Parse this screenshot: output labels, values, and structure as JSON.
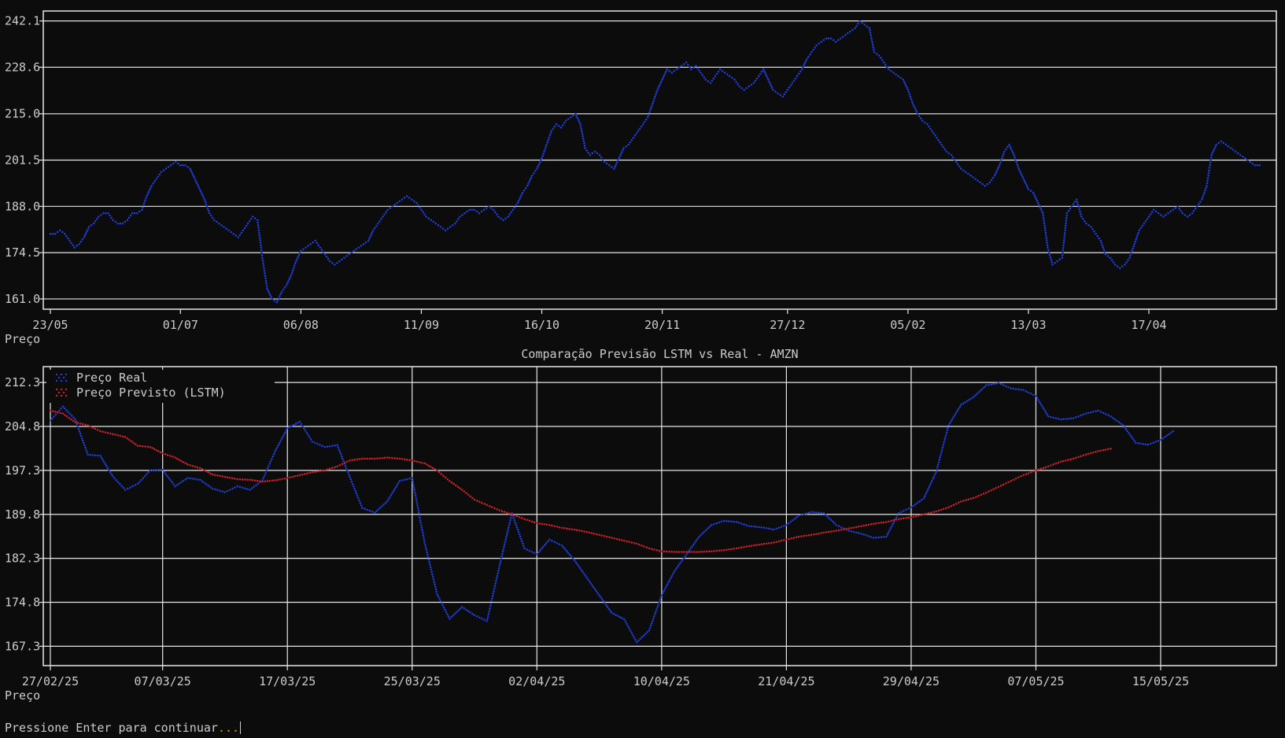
{
  "colors": {
    "background": "#0c0c0c",
    "text": "#cccccc",
    "grid": "#e6e6e6",
    "real": "#1f3fd8",
    "predicted": "#d0202a",
    "prompt_dots": "#c19c00"
  },
  "prompt": {
    "text": "Pressione Enter para continuar",
    "dots": "..."
  },
  "chart_data": [
    {
      "type": "line",
      "title": "",
      "xlabel": "",
      "ylabel": "Preço",
      "grid": "horizontal",
      "ylim": [
        158.0,
        245.0
      ],
      "yticks": [
        161.0,
        174.5,
        188.0,
        201.5,
        215.0,
        228.6,
        242.1
      ],
      "xticks": [
        "23/05",
        "01/07",
        "06/08",
        "11/09",
        "16/10",
        "20/11",
        "27/12",
        "05/02",
        "13/03",
        "17/04"
      ],
      "xtick_positions": [
        0,
        27,
        52,
        77,
        102,
        127,
        153,
        178,
        203,
        228
      ],
      "xlim": [
        0,
        254
      ],
      "series": [
        {
          "color": "#1f3fd8",
          "values": [
            180,
            180,
            181,
            180,
            178,
            176,
            177,
            179,
            182,
            183,
            185,
            186,
            186,
            184,
            183,
            183,
            184,
            186,
            186,
            187,
            191,
            194,
            196,
            198,
            199,
            200,
            201,
            200,
            200,
            199,
            196,
            193,
            190,
            186,
            184,
            183,
            182,
            181,
            180,
            179,
            181,
            183,
            185,
            184,
            173,
            164,
            161,
            160,
            163,
            165,
            168,
            172,
            175,
            176,
            177,
            178,
            176,
            174,
            172,
            171,
            172,
            173,
            174,
            175,
            176,
            177,
            178,
            181,
            183,
            185,
            187,
            188,
            189,
            190,
            191,
            190,
            189,
            187,
            185,
            184,
            183,
            182,
            181,
            182,
            183,
            185,
            186,
            187,
            187,
            186,
            187,
            188,
            187,
            185,
            184,
            185,
            187,
            189,
            192,
            194,
            197,
            199,
            202,
            206,
            210,
            212,
            211,
            213,
            214,
            215,
            212,
            205,
            203,
            204,
            203,
            201,
            200,
            199,
            202,
            205,
            206,
            208,
            210,
            212,
            214,
            218,
            222,
            225,
            228,
            227,
            228,
            229,
            230,
            228,
            229,
            227,
            225,
            224,
            226,
            228,
            227,
            226,
            225,
            223,
            222,
            223,
            224,
            226,
            228,
            225,
            222,
            221,
            220,
            222,
            224,
            226,
            228,
            231,
            233,
            235,
            236,
            237,
            237,
            236,
            237,
            238,
            239,
            240,
            242,
            241,
            240,
            233,
            232,
            230,
            228,
            227,
            226,
            225,
            222,
            218,
            215,
            213,
            212,
            210,
            208,
            206,
            204,
            203,
            201,
            199,
            198,
            197,
            196,
            195,
            194,
            195,
            197,
            200,
            204,
            206,
            203,
            199,
            196,
            193,
            192,
            189,
            186,
            176,
            171,
            172,
            173,
            186,
            188,
            190,
            185,
            183,
            182,
            180,
            178,
            174,
            173,
            171,
            170,
            171,
            173,
            177,
            181,
            183,
            185,
            187,
            186,
            185,
            186,
            187,
            188,
            186,
            185,
            186,
            188,
            190,
            194,
            203,
            206,
            207,
            206,
            205,
            204,
            203,
            202,
            201,
            200,
            200
          ]
        }
      ]
    },
    {
      "type": "line",
      "title": "Comparação Previsão LSTM vs Real - AMZN",
      "xlabel": "",
      "ylabel": "Preço",
      "grid": "both",
      "legend": "top-left",
      "ylim": [
        164.0,
        215.0
      ],
      "yticks": [
        167.3,
        174.8,
        182.3,
        189.8,
        197.3,
        204.8,
        212.3
      ],
      "xticks": [
        "27/02/25",
        "07/03/25",
        "17/03/25",
        "25/03/25",
        "02/04/25",
        "10/04/25",
        "21/04/25",
        "29/04/25",
        "07/05/25",
        "15/05/25"
      ],
      "xtick_positions": [
        0,
        9,
        19,
        29,
        39,
        49,
        59,
        69,
        79,
        89
      ],
      "xlim": [
        0,
        96.4
      ],
      "series": [
        {
          "name": "Preço Real",
          "color": "#1f3fd8",
          "values": [
            205.8,
            208.2,
            206.0,
            200.0,
            199.8,
            196.3,
            194.0,
            195.0,
            197.3,
            197.4,
            194.6,
            196.0,
            195.7,
            194.2,
            193.6,
            194.6,
            194.0,
            195.6,
            200.5,
            204.5,
            205.6,
            202.2,
            201.3,
            201.6,
            196.2,
            190.9,
            190.1,
            192.0,
            195.5,
            196.0,
            185.0,
            176.2,
            172.0,
            174.0,
            172.6,
            171.6,
            181.0,
            190.0,
            184.0,
            183.0,
            185.5,
            184.5,
            182.0,
            179.0,
            176.0,
            173.0,
            171.9,
            168.0,
            170.0,
            176.0,
            180.0,
            183.0,
            186.0,
            188.0,
            188.7,
            188.5,
            187.8,
            187.6,
            187.2,
            188.0,
            189.6,
            190.2,
            190.0,
            188.0,
            187.0,
            186.5,
            185.8,
            186.0,
            190.0,
            191.0,
            192.5,
            197.0,
            205.0,
            208.5,
            209.8,
            211.8,
            212.2,
            211.3,
            211.0,
            210.0,
            206.5,
            206.0,
            206.2,
            207.0,
            207.5,
            206.5,
            205.0,
            202.0,
            201.7,
            202.5,
            204.0
          ]
        },
        {
          "name": "Preço Previsto (LSTM)",
          "color": "#d0202a",
          "values": [
            207.5,
            207.0,
            205.5,
            205.0,
            204.0,
            203.5,
            203.0,
            201.5,
            201.3,
            200.2,
            199.5,
            198.3,
            197.7,
            196.6,
            196.2,
            195.8,
            195.7,
            195.4,
            195.6,
            196.0,
            196.5,
            197.0,
            197.3,
            198.0,
            199.0,
            199.3,
            199.3,
            199.5,
            199.3,
            199.0,
            198.5,
            197.3,
            195.5,
            194.0,
            192.3,
            191.4,
            190.5,
            189.8,
            189.0,
            188.3,
            188.0,
            187.5,
            187.2,
            186.8,
            186.3,
            185.8,
            185.3,
            184.8,
            184.0,
            183.5,
            183.4,
            183.4,
            183.4,
            183.5,
            183.7,
            184.0,
            184.4,
            184.7,
            185.0,
            185.5,
            186.0,
            186.3,
            186.7,
            187.0,
            187.4,
            187.8,
            188.2,
            188.5,
            189.0,
            189.3,
            189.8,
            190.3,
            191.0,
            192.0,
            192.6,
            193.5,
            194.5,
            195.5,
            196.5,
            197.3,
            198.0,
            198.8,
            199.3,
            200.0,
            200.6,
            201.0
          ]
        }
      ]
    }
  ]
}
